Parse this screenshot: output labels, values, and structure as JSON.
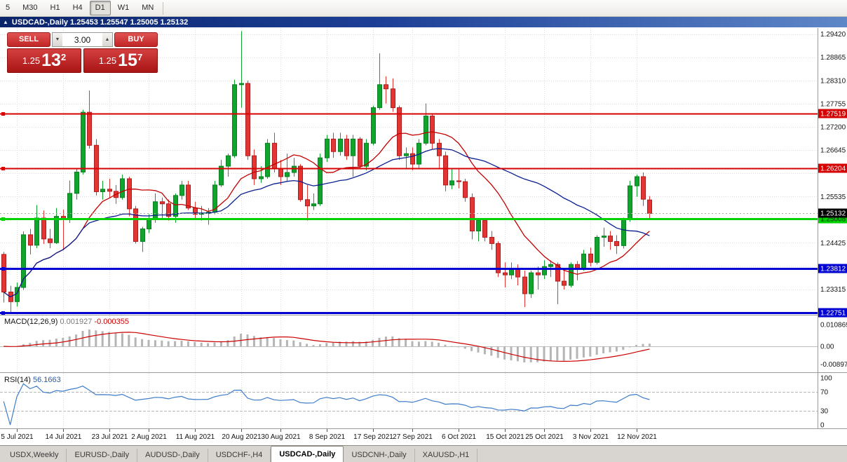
{
  "toolbar": {
    "timeframes": [
      {
        "label": "5",
        "active": false
      },
      {
        "label": "M30",
        "active": false
      },
      {
        "label": "H1",
        "active": false
      },
      {
        "label": "H4",
        "active": false
      },
      {
        "label": "D1",
        "active": true
      },
      {
        "label": "W1",
        "active": false
      },
      {
        "label": "MN",
        "active": false
      }
    ]
  },
  "title_bar": {
    "icon": "▲",
    "text": "USDCAD-,Daily 1.25453 1.25547 1.25005 1.25132"
  },
  "one_click": {
    "sell_label": "SELL",
    "buy_label": "BUY",
    "volume": "3.00",
    "spin_down": "▼",
    "spin_up": "▲",
    "bid": {
      "prefix": "1.25",
      "big": "13",
      "sup": "2"
    },
    "ask": {
      "prefix": "1.25",
      "big": "15",
      "sup": "7"
    }
  },
  "colors": {
    "bull": "#0fa52c",
    "bull_border": "#0a7d20",
    "bear": "#e43535",
    "bear_border": "#ad1c1c",
    "grid": "#dcdcdc",
    "ma_fast": "#c40000",
    "ma_slow": "#0a1f8f",
    "macd_hist": "#b5b5b5",
    "macd_signal": "#cc0000",
    "rsi": "#3f7cc9",
    "bid_line": "#aaaaaa",
    "badge_current_bg": "#000000"
  },
  "chart_data": {
    "type": "candlestick",
    "title": "USDCAD-,Daily",
    "symbol": "USDCAD",
    "timeframe": "Daily",
    "ohlc_display": {
      "open": "1.25453",
      "high": "1.25547",
      "low": "1.25005",
      "close": "1.25132"
    },
    "candles": [
      [
        1.2415,
        1.2421,
        1.23,
        1.2325
      ],
      [
        1.2325,
        1.234,
        1.2277,
        1.2302
      ],
      [
        1.2302,
        1.2348,
        1.229,
        1.2336
      ],
      [
        1.2336,
        1.247,
        1.233,
        1.2462
      ],
      [
        1.2462,
        1.2476,
        1.2415,
        1.2437
      ],
      [
        1.2437,
        1.2533,
        1.243,
        1.2502
      ],
      [
        1.2502,
        1.252,
        1.244,
        1.2452
      ],
      [
        1.2452,
        1.2476,
        1.243,
        1.2443
      ],
      [
        1.2443,
        1.2526,
        1.244,
        1.2506
      ],
      [
        1.2506,
        1.2522,
        1.2425,
        1.2498
      ],
      [
        1.2498,
        1.2592,
        1.249,
        1.2561
      ],
      [
        1.2561,
        1.2619,
        1.2546,
        1.2612
      ],
      [
        1.2612,
        1.2761,
        1.2606,
        1.2755
      ],
      [
        1.2755,
        1.2807,
        1.2668,
        1.2676
      ],
      [
        1.2676,
        1.2691,
        1.2556,
        1.2565
      ],
      [
        1.2565,
        1.2591,
        1.2546,
        1.2571
      ],
      [
        1.2571,
        1.2596,
        1.2551,
        1.2566
      ],
      [
        1.2566,
        1.2581,
        1.2536,
        1.2551
      ],
      [
        1.2551,
        1.2606,
        1.2546,
        1.2596
      ],
      [
        1.2596,
        1.2601,
        1.2506,
        1.2524
      ],
      [
        1.2524,
        1.2531,
        1.2441,
        1.2446
      ],
      [
        1.2446,
        1.2481,
        1.2421,
        1.2476
      ],
      [
        1.2476,
        1.2511,
        1.2466,
        1.2501
      ],
      [
        1.2501,
        1.2561,
        1.2491,
        1.2541
      ],
      [
        1.2541,
        1.2551,
        1.2501,
        1.2536
      ],
      [
        1.2536,
        1.2546,
        1.2496,
        1.2506
      ],
      [
        1.2506,
        1.2561,
        1.2491,
        1.2556
      ],
      [
        1.2556,
        1.2591,
        1.2546,
        1.2581
      ],
      [
        1.2581,
        1.2591,
        1.2521,
        1.2526
      ],
      [
        1.2526,
        1.2541,
        1.2501,
        1.2511
      ],
      [
        1.2511,
        1.2531,
        1.2496,
        1.2513
      ],
      [
        1.2513,
        1.2526,
        1.2486,
        1.2516
      ],
      [
        1.2516,
        1.2591,
        1.2511,
        1.2581
      ],
      [
        1.2581,
        1.2641,
        1.2576,
        1.2626
      ],
      [
        1.2626,
        1.2656,
        1.2601,
        1.2651
      ],
      [
        1.2651,
        1.2833,
        1.2646,
        1.2821
      ],
      [
        1.2821,
        1.2949,
        1.2766,
        1.2824
      ],
      [
        1.2824,
        1.2831,
        1.2641,
        1.2651
      ],
      [
        1.2651,
        1.2666,
        1.2581,
        1.2596
      ],
      [
        1.2596,
        1.2626,
        1.2586,
        1.2601
      ],
      [
        1.2601,
        1.2691,
        1.2596,
        1.2681
      ],
      [
        1.2681,
        1.2706,
        1.2611,
        1.2621
      ],
      [
        1.2621,
        1.2641,
        1.2581,
        1.2601
      ],
      [
        1.2601,
        1.2656,
        1.2591,
        1.2611
      ],
      [
        1.2611,
        1.2646,
        1.2601,
        1.2626
      ],
      [
        1.2626,
        1.2631,
        1.2541,
        1.2546
      ],
      [
        1.2546,
        1.2581,
        1.2496,
        1.2531
      ],
      [
        1.2531,
        1.2561,
        1.2521,
        1.2536
      ],
      [
        1.2536,
        1.2656,
        1.2531,
        1.2646
      ],
      [
        1.2646,
        1.2701,
        1.2636,
        1.2691
      ],
      [
        1.2691,
        1.2706,
        1.2646,
        1.2661
      ],
      [
        1.2661,
        1.2706,
        1.2651,
        1.2691
      ],
      [
        1.2691,
        1.2701,
        1.2641,
        1.2651
      ],
      [
        1.2651,
        1.2701,
        1.2601,
        1.2691
      ],
      [
        1.2691,
        1.2696,
        1.2621,
        1.2626
      ],
      [
        1.2626,
        1.2691,
        1.2616,
        1.2681
      ],
      [
        1.2681,
        1.2771,
        1.2676,
        1.2766
      ],
      [
        1.2766,
        1.2896,
        1.2761,
        1.2821
      ],
      [
        1.2821,
        1.2841,
        1.2776,
        1.2811
      ],
      [
        1.2811,
        1.2836,
        1.2756,
        1.2766
      ],
      [
        1.2766,
        1.2771,
        1.2641,
        1.2651
      ],
      [
        1.2651,
        1.2671,
        1.2621,
        1.2656
      ],
      [
        1.2656,
        1.2671,
        1.2616,
        1.2631
      ],
      [
        1.2631,
        1.2691,
        1.2621,
        1.2681
      ],
      [
        1.2681,
        1.2776,
        1.2676,
        1.2746
      ],
      [
        1.2746,
        1.2751,
        1.2666,
        1.2681
      ],
      [
        1.2681,
        1.2691,
        1.2621,
        1.2651
      ],
      [
        1.2651,
        1.2661,
        1.2566,
        1.2581
      ],
      [
        1.2581,
        1.2621,
        1.2571,
        1.2591
      ],
      [
        1.2591,
        1.2619,
        1.2573,
        1.2589
      ],
      [
        1.2589,
        1.2596,
        1.2541,
        1.2551
      ],
      [
        1.2551,
        1.2561,
        1.2451,
        1.2471
      ],
      [
        1.2471,
        1.2501,
        1.2446,
        1.2496
      ],
      [
        1.2496,
        1.2501,
        1.2446,
        1.2456
      ],
      [
        1.2456,
        1.2471,
        1.2426,
        1.2441
      ],
      [
        1.2441,
        1.2446,
        1.2361,
        1.2371
      ],
      [
        1.2371,
        1.2396,
        1.2336,
        1.2366
      ],
      [
        1.2366,
        1.2396,
        1.2356,
        1.2381
      ],
      [
        1.2381,
        1.2391,
        1.2341,
        1.2361
      ],
      [
        1.2361,
        1.2376,
        1.2289,
        1.2321
      ],
      [
        1.2321,
        1.2376,
        1.2311,
        1.2371
      ],
      [
        1.2371,
        1.2386,
        1.2331,
        1.2366
      ],
      [
        1.2366,
        1.2401,
        1.2356,
        1.2386
      ],
      [
        1.2386,
        1.2401,
        1.2361,
        1.2391
      ],
      [
        1.2391,
        1.2396,
        1.2296,
        1.2351
      ],
      [
        1.2351,
        1.2376,
        1.2331,
        1.2341
      ],
      [
        1.2341,
        1.2396,
        1.2336,
        1.2391
      ],
      [
        1.2391,
        1.2399,
        1.2353,
        1.2381
      ],
      [
        1.2381,
        1.2426,
        1.2376,
        1.2416
      ],
      [
        1.2416,
        1.2431,
        1.2386,
        1.2396
      ],
      [
        1.2396,
        1.2461,
        1.2391,
        1.2456
      ],
      [
        1.2456,
        1.2479,
        1.2433,
        1.2459
      ],
      [
        1.2459,
        1.2471,
        1.2426,
        1.2446
      ],
      [
        1.2446,
        1.2461,
        1.2416,
        1.2436
      ],
      [
        1.2436,
        1.2503,
        1.2429,
        1.2498
      ],
      [
        1.2498,
        1.2591,
        1.2493,
        1.2579
      ],
      [
        1.2579,
        1.2606,
        1.2553,
        1.2601
      ],
      [
        1.2601,
        1.2611,
        1.2531,
        1.2547
      ],
      [
        1.25453,
        1.25547,
        1.25005,
        1.25132
      ]
    ],
    "x_ticks": [
      {
        "i": 2,
        "label": "5 Jul 2021"
      },
      {
        "i": 9,
        "label": "14 Jul 2021"
      },
      {
        "i": 16,
        "label": "23 Jul 2021"
      },
      {
        "i": 22,
        "label": "2 Aug 2021"
      },
      {
        "i": 29,
        "label": "11 Aug 2021"
      },
      {
        "i": 36,
        "label": "20 Aug 2021"
      },
      {
        "i": 42,
        "label": "30 Aug 2021"
      },
      {
        "i": 49,
        "label": "8 Sep 2021"
      },
      {
        "i": 56,
        "label": "17 Sep 2021"
      },
      {
        "i": 62,
        "label": "27 Sep 2021"
      },
      {
        "i": 69,
        "label": "6 Oct 2021"
      },
      {
        "i": 76,
        "label": "15 Oct 2021"
      },
      {
        "i": 82,
        "label": "25 Oct 2021"
      },
      {
        "i": 89,
        "label": "3 Nov 2021"
      },
      {
        "i": 96,
        "label": "12 Nov 2021"
      }
    ],
    "y_axis": [
      {
        "p": 1.2942,
        "t": "1.29420"
      },
      {
        "p": 1.28865,
        "t": "1.28865"
      },
      {
        "p": 1.2831,
        "t": "1.28310"
      },
      {
        "p": 1.27755,
        "t": "1.27755"
      },
      {
        "p": 1.272,
        "t": "1.27200"
      },
      {
        "p": 1.26645,
        "t": "1.26645"
      },
      {
        "p": 1.2609,
        "t": ""
      },
      {
        "p": 1.25535,
        "t": "1.25535"
      },
      {
        "p": 1.2498,
        "t": ""
      },
      {
        "p": 1.24425,
        "t": "1.24425"
      },
      {
        "p": 1.2387,
        "t": ""
      },
      {
        "p": 1.23315,
        "t": "1.23315"
      },
      {
        "p": 1.2276,
        "t": ""
      }
    ],
    "hlines": [
      {
        "price": 1.27519,
        "label": "1.27519",
        "color": "#d60000",
        "width": 2,
        "text_color": "#ffffff"
      },
      {
        "price": 1.26204,
        "label": "1.26204",
        "color": "#d60000",
        "width": 2,
        "text_color": "#ffffff"
      },
      {
        "price": 1.25008,
        "label": "1.25008",
        "color": "#00d200",
        "width": 3,
        "text_color": "#002b00"
      },
      {
        "price": 1.23812,
        "label": "1.23812",
        "color": "#0000d2",
        "width": 3,
        "text_color": "#ffffff"
      },
      {
        "price": 1.22751,
        "label": "1.22751",
        "color": "#0000d2",
        "width": 3,
        "text_color": "#ffffff"
      }
    ],
    "current_price": {
      "value": 1.25132,
      "label": "1.25132"
    },
    "indicators": {
      "ma": [
        {
          "period": 13,
          "name": "ma-fast"
        },
        {
          "period": 34,
          "name": "ma-slow"
        }
      ],
      "macd": {
        "label": "MACD(12,26,9)",
        "value_main": "0.001927",
        "value_signal": "-0.000355",
        "axis_labels": [
          "0.010869",
          "0.00",
          "-0.008974"
        ],
        "params": [
          12,
          26,
          9
        ]
      },
      "rsi": {
        "label": "RSI(14)",
        "value": "56.1663",
        "axis_labels": [
          "100",
          "70",
          "30",
          "0"
        ],
        "levels": [
          70,
          30
        ],
        "period": 14
      }
    }
  },
  "tabs": {
    "items": [
      {
        "label": "USDX,Weekly",
        "active": false
      },
      {
        "label": "EURUSD-,Daily",
        "active": false
      },
      {
        "label": "AUDUSD-,Daily",
        "active": false
      },
      {
        "label": "USDCHF-,H4",
        "active": false
      },
      {
        "label": "USDCAD-,Daily",
        "active": true
      },
      {
        "label": "USDCNH-,Daily",
        "active": false
      },
      {
        "label": "XAUUSD-,H1",
        "active": false
      }
    ]
  }
}
